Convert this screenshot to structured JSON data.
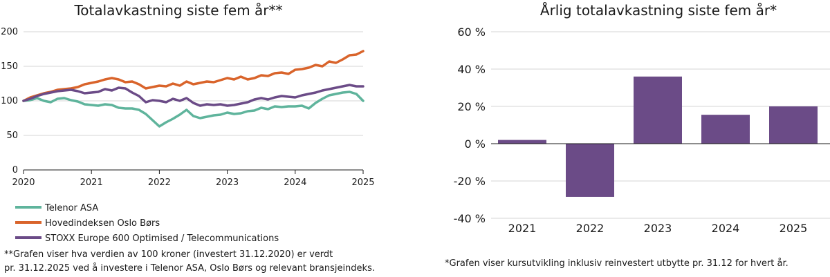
{
  "chart_data": [
    {
      "type": "line",
      "title": "Totalavkastning siste fem år**",
      "xlabel": "",
      "ylabel": "",
      "x_ticks": [
        "2020",
        "2021",
        "2022",
        "2023",
        "2024",
        "2025"
      ],
      "y_ticks": [
        "0",
        "50",
        "100",
        "150",
        "200"
      ],
      "xlim": [
        2020,
        2025
      ],
      "ylim": [
        0,
        200
      ],
      "grid": true,
      "legend_position": "bottom",
      "series": [
        {
          "name": "Telenor ASA",
          "color": "#5fb49c",
          "x": [
            2020.0,
            2020.1,
            2020.2,
            2020.3,
            2020.4,
            2020.5,
            2020.6,
            2020.7,
            2020.8,
            2020.9,
            2021.0,
            2021.1,
            2021.2,
            2021.3,
            2021.4,
            2021.5,
            2021.6,
            2021.7,
            2021.8,
            2021.9,
            2022.0,
            2022.1,
            2022.2,
            2022.3,
            2022.4,
            2022.5,
            2022.6,
            2022.7,
            2022.8,
            2022.9,
            2023.0,
            2023.1,
            2023.2,
            2023.3,
            2023.4,
            2023.5,
            2023.6,
            2023.7,
            2023.8,
            2023.9,
            2024.0,
            2024.1,
            2024.2,
            2024.3,
            2024.4,
            2024.5,
            2024.6,
            2024.7,
            2024.8,
            2024.9,
            2025.0
          ],
          "values": [
            100,
            101,
            104,
            100,
            98,
            103,
            104,
            101,
            99,
            95,
            94,
            93,
            95,
            94,
            90,
            89,
            89,
            87,
            81,
            72,
            63,
            69,
            74,
            80,
            87,
            78,
            75,
            77,
            79,
            80,
            83,
            81,
            82,
            85,
            86,
            90,
            88,
            92,
            91,
            92,
            92,
            93,
            89,
            97,
            103,
            108,
            110,
            112,
            113,
            110,
            100
          ]
        },
        {
          "name": "Hovedindeksen Oslo Børs",
          "color": "#d9642b",
          "x": [
            2020.0,
            2020.1,
            2020.2,
            2020.3,
            2020.4,
            2020.5,
            2020.6,
            2020.7,
            2020.8,
            2020.9,
            2021.0,
            2021.1,
            2021.2,
            2021.3,
            2021.4,
            2021.5,
            2021.6,
            2021.7,
            2021.8,
            2021.9,
            2022.0,
            2022.1,
            2022.2,
            2022.3,
            2022.4,
            2022.5,
            2022.6,
            2022.7,
            2022.8,
            2022.9,
            2023.0,
            2023.1,
            2023.2,
            2023.3,
            2023.4,
            2023.5,
            2023.6,
            2023.7,
            2023.8,
            2023.9,
            2024.0,
            2024.1,
            2024.2,
            2024.3,
            2024.4,
            2024.5,
            2024.6,
            2024.7,
            2024.8,
            2024.9,
            2025.0
          ],
          "values": [
            100,
            105,
            108,
            111,
            113,
            116,
            117,
            118,
            120,
            124,
            126,
            128,
            131,
            133,
            131,
            127,
            128,
            124,
            118,
            120,
            122,
            121,
            125,
            122,
            128,
            124,
            126,
            128,
            127,
            130,
            133,
            131,
            135,
            131,
            133,
            137,
            136,
            140,
            141,
            139,
            145,
            146,
            148,
            152,
            150,
            157,
            155,
            160,
            166,
            167,
            172
          ]
        },
        {
          "name": "STOXX Europe 600 Optimised / Telecommunications",
          "color": "#6b4b87",
          "x": [
            2020.0,
            2020.1,
            2020.2,
            2020.3,
            2020.4,
            2020.5,
            2020.6,
            2020.7,
            2020.8,
            2020.9,
            2021.0,
            2021.1,
            2021.2,
            2021.3,
            2021.4,
            2021.5,
            2021.6,
            2021.7,
            2021.8,
            2021.9,
            2022.0,
            2022.1,
            2022.2,
            2022.3,
            2022.4,
            2022.5,
            2022.6,
            2022.7,
            2022.8,
            2022.9,
            2023.0,
            2023.1,
            2023.2,
            2023.3,
            2023.4,
            2023.5,
            2023.6,
            2023.7,
            2023.8,
            2023.9,
            2024.0,
            2024.1,
            2024.2,
            2024.3,
            2024.4,
            2024.5,
            2024.6,
            2024.7,
            2024.8,
            2024.9,
            2025.0
          ],
          "values": [
            100,
            103,
            107,
            110,
            112,
            114,
            115,
            116,
            114,
            111,
            112,
            113,
            117,
            115,
            119,
            118,
            112,
            107,
            98,
            101,
            100,
            98,
            103,
            100,
            104,
            97,
            93,
            95,
            94,
            95,
            93,
            94,
            96,
            98,
            102,
            104,
            102,
            105,
            107,
            106,
            105,
            108,
            110,
            112,
            115,
            117,
            119,
            121,
            123,
            121,
            121
          ]
        }
      ]
    },
    {
      "type": "bar",
      "title": "Årlig totalavkastning siste fem år*",
      "xlabel": "",
      "ylabel": "",
      "categories": [
        "2021",
        "2022",
        "2023",
        "2024",
        "2025"
      ],
      "values": [
        2,
        -28.5,
        36,
        15.5,
        20
      ],
      "unit": "%",
      "y_ticks": [
        "60 %",
        "40 %",
        "20 %",
        "0 %",
        "-20 %",
        "-40 %"
      ],
      "ylim": [
        -40,
        60
      ],
      "grid": true,
      "bar_color": "#6b4b87"
    }
  ],
  "notes": {
    "left_line1": "**Grafen viser hva verdien av 100 kroner (investert 31.12.2020) er verdt",
    "left_line2": "pr. 31.12.2025 ved å investere i Telenor ASA, Oslo Børs og relevant bransjeindeks.",
    "right": "*Grafen viser kursutvikling inklusiv reinvestert utbytte pr. 31.12 for hvert år."
  }
}
